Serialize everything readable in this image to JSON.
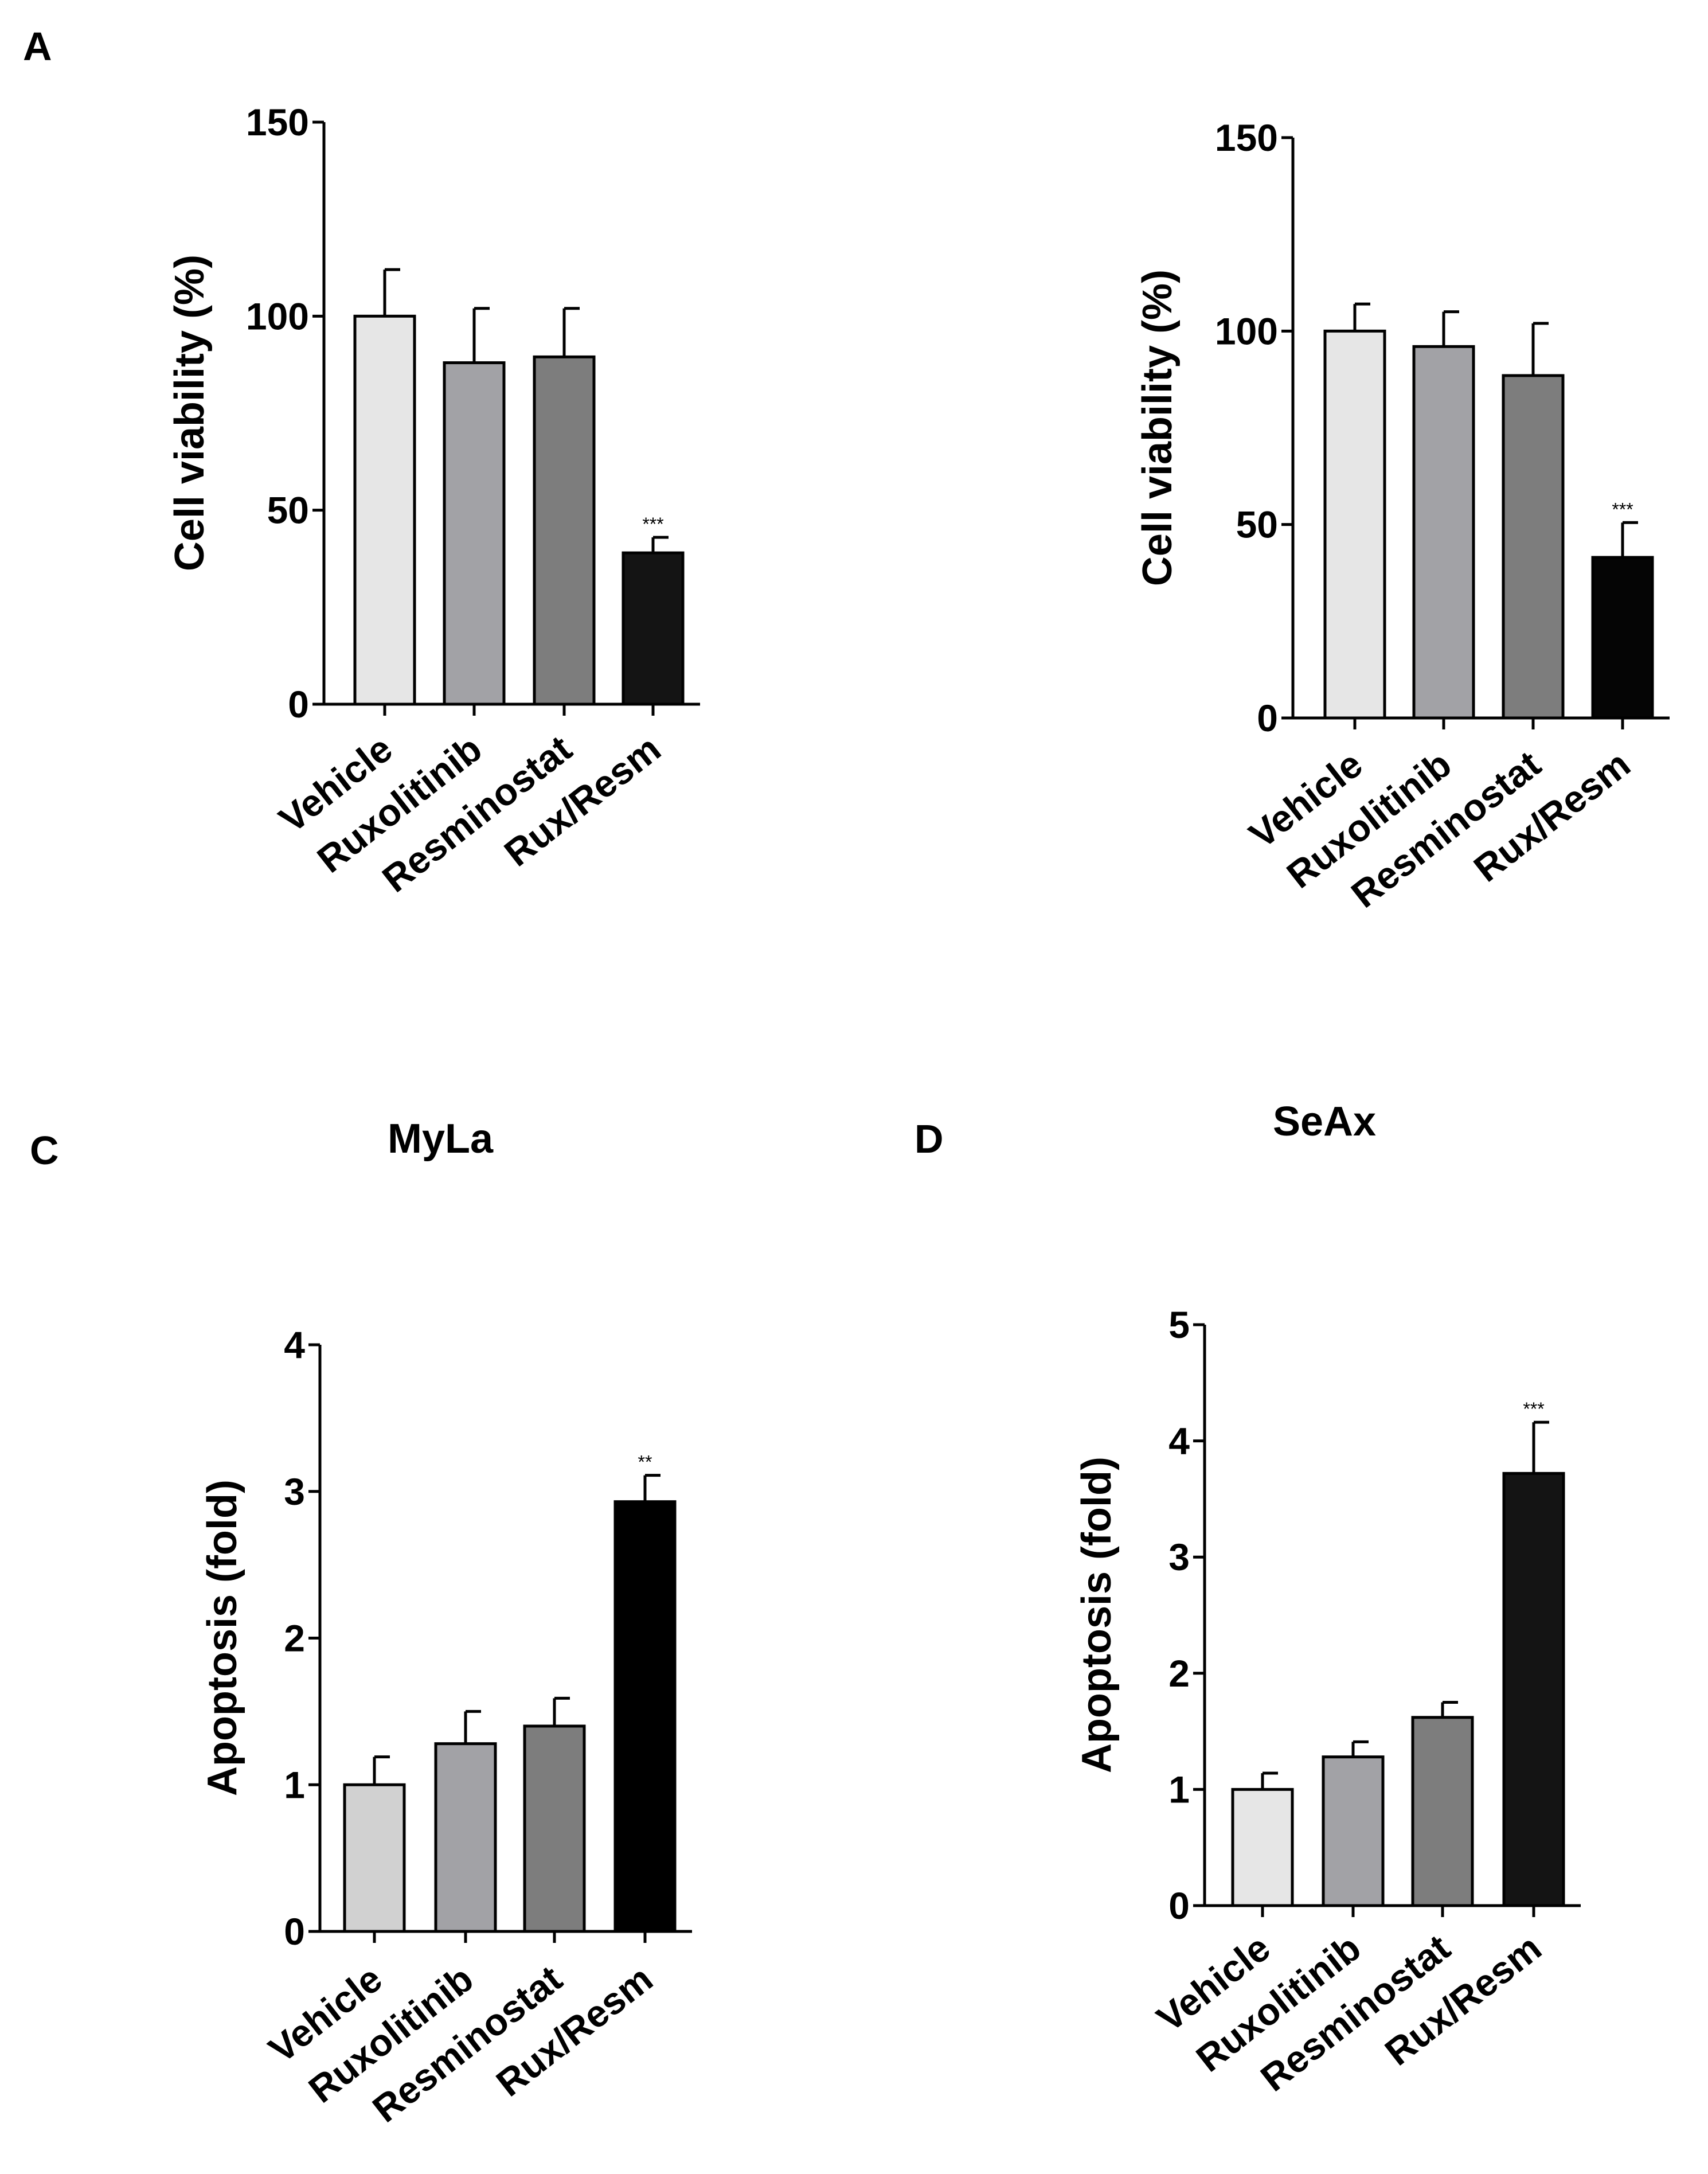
{
  "panels": [
    {
      "letter": "A",
      "title": ""
    },
    {
      "letter": "",
      "title": ""
    },
    {
      "letter": "C",
      "title": "MyLa"
    },
    {
      "letter": "D",
      "title": "SeAx"
    }
  ],
  "chart_data": [
    {
      "type": "bar",
      "title": "",
      "ylabel": "Cell viability  (%)",
      "xlabel": "",
      "ylim": [
        0,
        150
      ],
      "yticks": [
        0,
        50,
        100,
        150
      ],
      "categories": [
        "Vehicle",
        "Ruxolitinib",
        "Resminostat",
        "Rux/Resm"
      ],
      "values": [
        100,
        88,
        89.5,
        39
      ],
      "errors": [
        12,
        14,
        12.5,
        4
      ],
      "significance": [
        "",
        "",
        "",
        "***"
      ],
      "colors": [
        "#e6e6e6",
        "#a2a2a6",
        "#7d7d7d",
        "#141414"
      ]
    },
    {
      "type": "bar",
      "title": "",
      "ylabel": "Cell viability  (%)",
      "xlabel": "",
      "ylim": [
        0,
        150
      ],
      "yticks": [
        0,
        50,
        100,
        150
      ],
      "categories": [
        "Vehicle",
        "Ruxolitinib",
        "Resminostat",
        "Rux/Resm"
      ],
      "values": [
        100,
        96,
        88.5,
        41.5
      ],
      "errors": [
        7,
        9,
        13.5,
        9
      ],
      "significance": [
        "",
        "",
        "",
        "***"
      ],
      "colors": [
        "#e6e6e6",
        "#a2a2a6",
        "#7d7d7d",
        "#050505"
      ]
    },
    {
      "type": "bar",
      "title": "MyLa",
      "ylabel": "Apoptosis (fold)",
      "xlabel": "",
      "ylim": [
        0,
        4
      ],
      "yticks": [
        0,
        1,
        2,
        3,
        4
      ],
      "categories": [
        "Vehicle",
        "Ruxolitinib",
        "Resminostat",
        "Rux/Resm"
      ],
      "values": [
        1.0,
        1.28,
        1.4,
        2.93
      ],
      "errors": [
        0.19,
        0.22,
        0.19,
        0.18
      ],
      "significance": [
        "",
        "",
        "",
        "**"
      ],
      "colors": [
        "#d1d1d1",
        "#a2a2a6",
        "#7d7d7d",
        "#000000"
      ]
    },
    {
      "type": "bar",
      "title": "SeAx",
      "ylabel": "Apoptosis (fold)",
      "xlabel": "",
      "ylim": [
        0,
        5
      ],
      "yticks": [
        0,
        1,
        2,
        3,
        4,
        5
      ],
      "categories": [
        "Vehicle",
        "Ruxolitinib",
        "Resminostat",
        "Rux/Resm"
      ],
      "values": [
        1.0,
        1.28,
        1.62,
        3.72
      ],
      "errors": [
        0.14,
        0.13,
        0.13,
        0.44
      ],
      "significance": [
        "",
        "",
        "",
        "***"
      ],
      "colors": [
        "#e6e6e6",
        "#a2a2a6",
        "#7d7d7d",
        "#141414"
      ]
    }
  ]
}
